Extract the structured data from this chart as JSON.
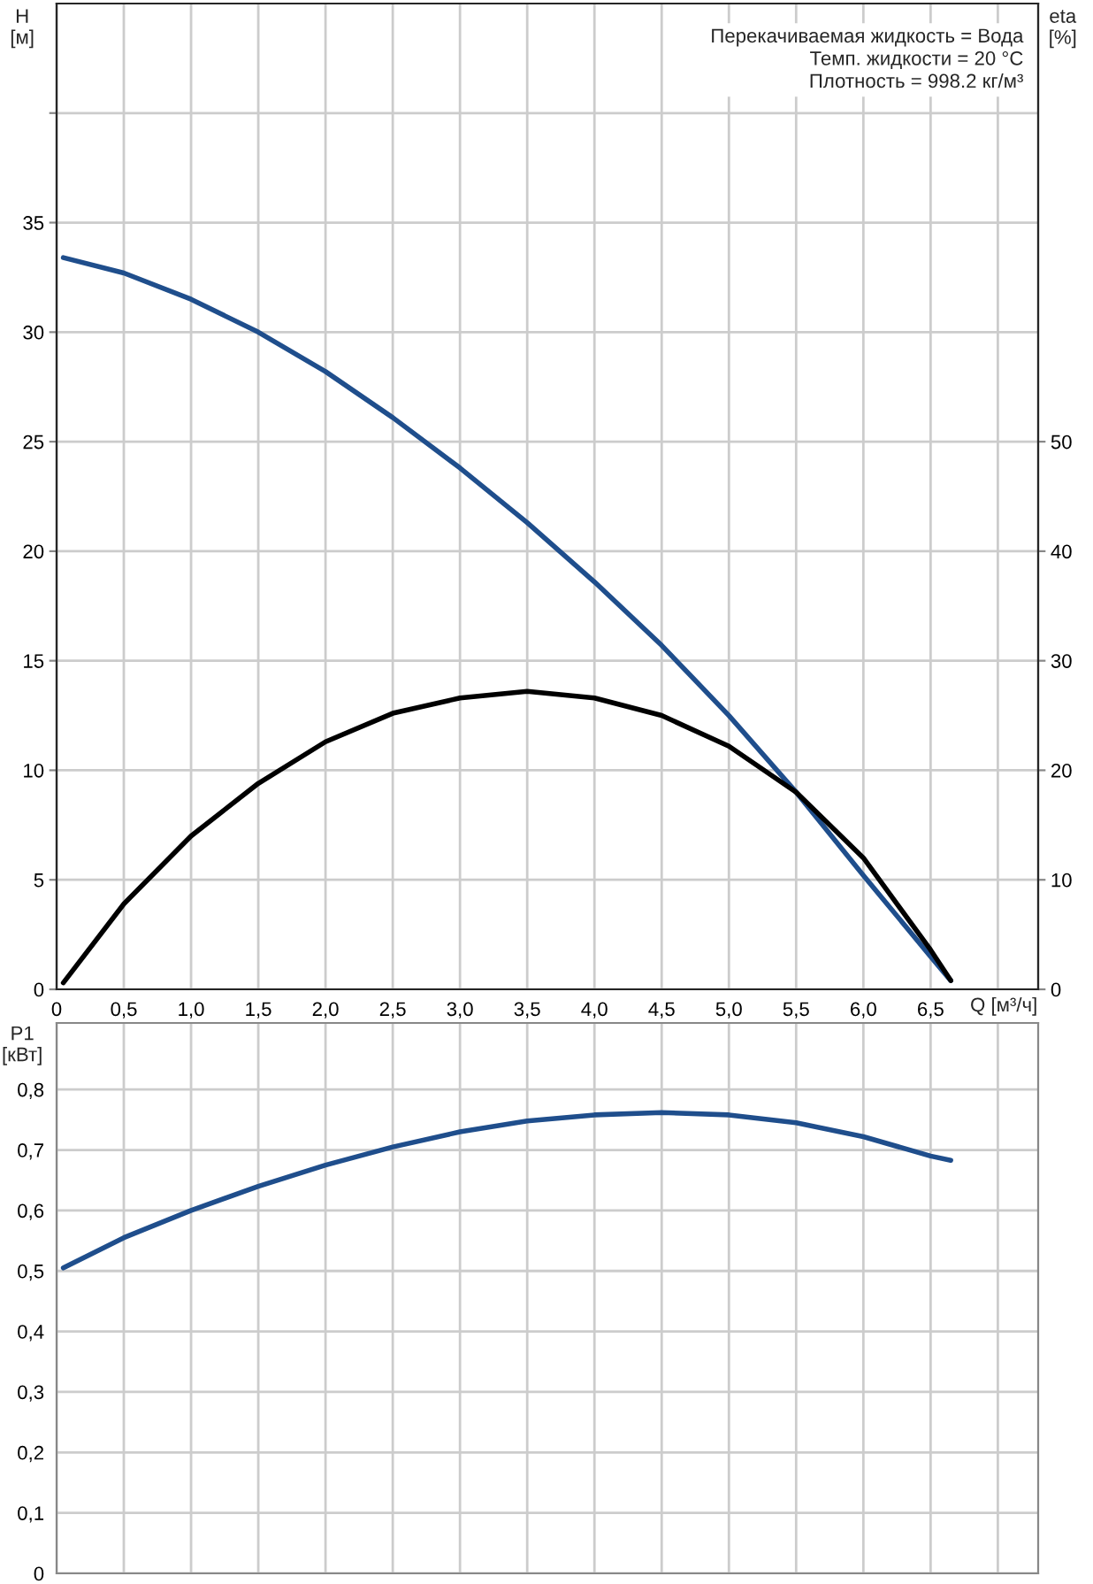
{
  "chart_data": [
    {
      "type": "line",
      "ylabel": "H\n[м]",
      "y2label": "eta\n[%]",
      "xlabel": "Q [м³/ч]",
      "annotations": [
        "Перекачиваемая жидкость = Вода\nТемп. жидкости = 20 °C\nПлотность = 998.2 кг/м³"
      ],
      "x": [
        0.05,
        0.5,
        1.0,
        1.5,
        2.0,
        2.5,
        3.0,
        3.5,
        4.0,
        4.5,
        5.0,
        5.5,
        6.0,
        6.5,
        6.65
      ],
      "series": [
        {
          "color": "#1f4e8c",
          "values": [
            33.4,
            32.7,
            31.5,
            30.0,
            28.2,
            26.1,
            23.8,
            21.3,
            18.6,
            15.7,
            12.5,
            9.0,
            5.2,
            1.5,
            0.4
          ]
        },
        {
          "color": "#000000",
          "axis": "y2",
          "values": [
            0.6,
            7.8,
            14,
            18.8,
            22.6,
            25.2,
            26.6,
            27.2,
            26.6,
            25,
            22.2,
            18,
            12,
            3.6,
            0.8
          ]
        }
      ],
      "xlim": [
        0,
        7.3
      ],
      "xticks": [
        0,
        {
          "value": 0.5,
          "label": "0,5"
        },
        {
          "value": 1.0,
          "label": "1,0"
        },
        {
          "value": 1.5,
          "label": "1,5"
        },
        {
          "value": 2.0,
          "label": "2,0"
        },
        {
          "value": 2.5,
          "label": "2,5"
        },
        {
          "value": 3.0,
          "label": "3,0"
        },
        {
          "value": 3.5,
          "label": "3,5"
        },
        {
          "value": 4.0,
          "label": "4,0"
        },
        {
          "value": 4.5,
          "label": "4,5"
        },
        {
          "value": 5.0,
          "label": "5,0"
        },
        {
          "value": 5.5,
          "label": "5,5"
        },
        {
          "value": 6.0,
          "label": "6,0"
        },
        {
          "value": 6.5,
          "label": "6,5"
        },
        {
          "value": 7.0,
          "label": null
        }
      ],
      "ylim": [
        0,
        45
      ],
      "yticks": [
        0,
        5,
        10,
        15,
        20,
        25,
        30,
        35,
        {
          "value": 40,
          "label": null
        }
      ],
      "y2lim": [
        0,
        90
      ],
      "y2ticks": [
        0,
        10,
        20,
        30,
        40,
        50
      ],
      "grid": true,
      "marker": "none",
      "line_style": "solid"
    },
    {
      "type": "line",
      "ylabel": "P1\n[кВт]",
      "x": [
        0.05,
        0.5,
        1.0,
        1.5,
        2.0,
        2.5,
        3.0,
        3.5,
        4.0,
        4.5,
        5.0,
        5.5,
        6.0,
        6.5,
        6.65
      ],
      "series": [
        {
          "color": "#1f4e8c",
          "values": [
            0.505,
            0.555,
            0.6,
            0.64,
            0.675,
            0.705,
            0.73,
            0.748,
            0.758,
            0.762,
            0.758,
            0.745,
            0.722,
            0.69,
            0.683
          ]
        }
      ],
      "xlim": [
        0,
        7.3
      ],
      "xticks": [
        0,
        0.5,
        1.0,
        1.5,
        2.0,
        2.5,
        3.0,
        3.5,
        4.0,
        4.5,
        5.0,
        5.5,
        6.0,
        6.5,
        7.0
      ],
      "ylim": [
        0,
        0.91
      ],
      "yticks": [
        0,
        {
          "value": 0.1,
          "label": "0,1"
        },
        {
          "value": 0.2,
          "label": "0,2"
        },
        {
          "value": 0.3,
          "label": "0,3"
        },
        {
          "value": 0.4,
          "label": "0,4"
        },
        {
          "value": 0.5,
          "label": "0,5"
        },
        {
          "value": 0.6,
          "label": "0,6"
        },
        {
          "value": 0.7,
          "label": "0,7"
        },
        {
          "value": 0.8,
          "label": "0,8"
        }
      ],
      "tick_labels": "y",
      "grid": true,
      "marker": "none",
      "line_style": "solid"
    }
  ]
}
